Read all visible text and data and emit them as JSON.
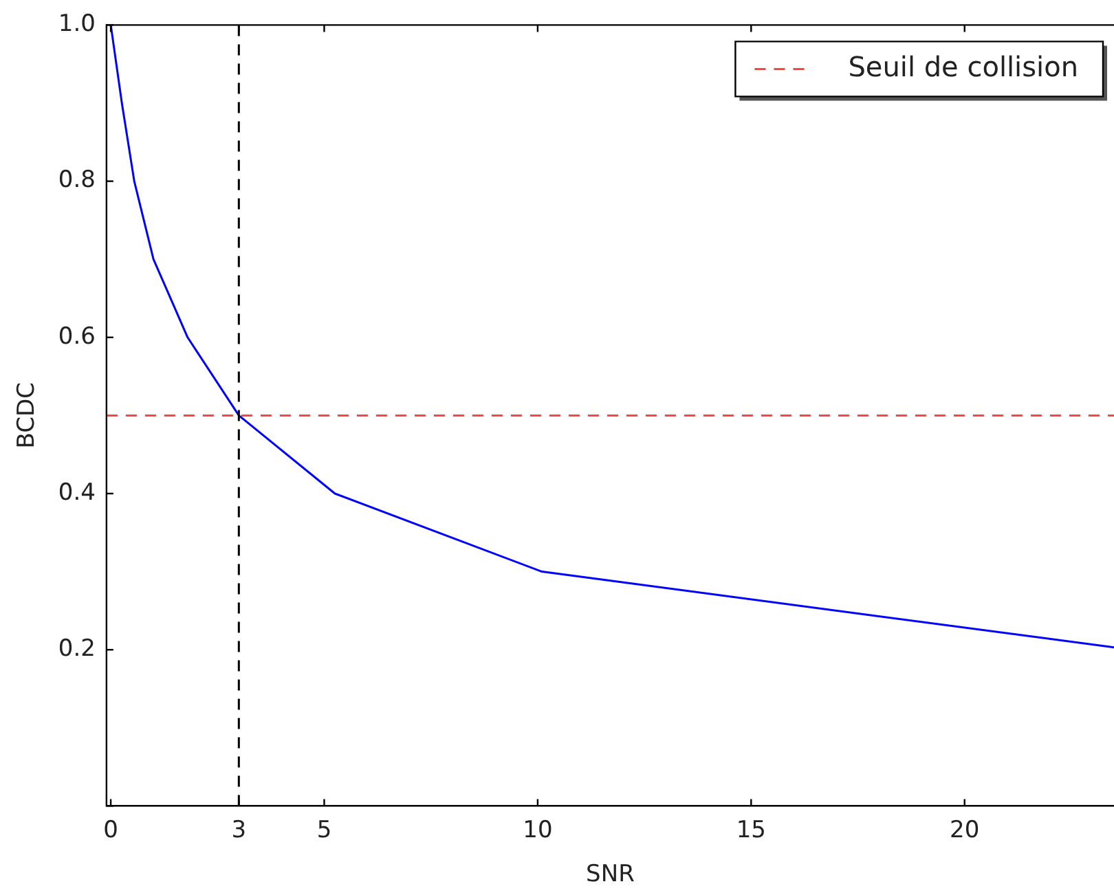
{
  "chart_data": {
    "type": "line",
    "xlabel": "SNR",
    "ylabel": "BCDC",
    "x": [
      0,
      0.26,
      0.55,
      1,
      1.8,
      3,
      5.25,
      10.1,
      23.5
    ],
    "series": [
      {
        "color": "#0000ff",
        "values": [
          1.0,
          0.9,
          0.8,
          0.7,
          0.6,
          0.5,
          0.4,
          0.3,
          0.203
        ]
      }
    ],
    "xlim": [
      -0.1,
      23.5
    ],
    "xticks": [
      0,
      3,
      5,
      10,
      15,
      20
    ],
    "ylim": [
      0,
      1
    ],
    "yticks": [
      {
        "value": 0,
        "label": null
      },
      0.2,
      0.4,
      0.6,
      0.8,
      {
        "value": 1,
        "label": "1.0"
      }
    ],
    "ref_lines": [
      {
        "axis": "y",
        "value": 0.5,
        "label": "Seuil de collision",
        "color": "#ff4444",
        "line_style": "dashed"
      },
      {
        "axis": "x",
        "value": 3,
        "color": "#000000",
        "line_style": "dashed"
      }
    ],
    "grid": false,
    "legend": "top right",
    "marker": "none",
    "line_style": "solid"
  }
}
